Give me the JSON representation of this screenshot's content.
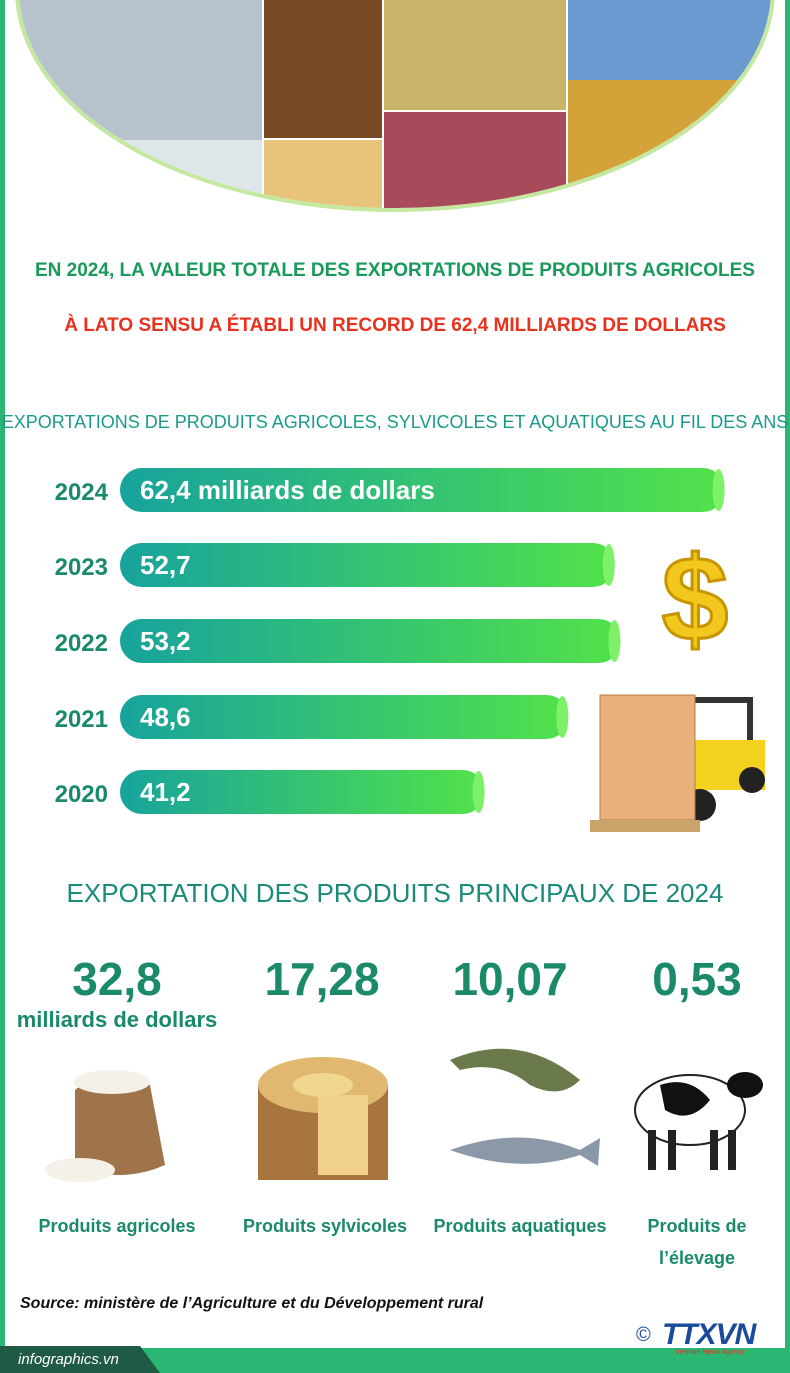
{
  "headline": {
    "line1": "EN 2024, LA VALEUR TOTALE DES EXPORTATIONS DE PRODUITS AGRICOLES",
    "line2": "À LATO SENSU A ÉTABLI UN RECORD DE 62,4 MILLIARDS DE DOLLARS"
  },
  "chart_data": {
    "type": "hbar",
    "title": "EXPORTATIONS DE PRODUITS AGRICOLES, SYLVICOLES ET AQUATIQUES AU FIL DES ANS",
    "categories": [
      "2024",
      "2023",
      "2022",
      "2021",
      "2020"
    ],
    "values": [
      62.4,
      52.7,
      53.2,
      48.6,
      41.2
    ],
    "value_labels": [
      "62,4 milliards de dollars",
      "52,7",
      "53,2",
      "48,6",
      "41,2"
    ],
    "xlim": [
      9,
      65
    ],
    "color": [
      "#17a39c",
      "#52e24a"
    ]
  },
  "products": {
    "title": "EXPORTATION DES PRODUITS PRINCIPAUX DE 2024",
    "unit": "milliards de dollars",
    "items": [
      {
        "value": "32,8",
        "label": "Produits agricoles"
      },
      {
        "value": "17,28",
        "label": "Produits sylvicoles"
      },
      {
        "value": "10,07",
        "label": "Produits aquatiques"
      },
      {
        "value": "0,53",
        "label": "Produits de l’élevage"
      }
    ]
  },
  "source": "Source: ministère de l’Agriculture et du Développement rural",
  "footer": {
    "site": "infographics.vn",
    "copyright": "©",
    "logo": "TTXVN",
    "logo_sub": "Vietnam News Agency"
  }
}
